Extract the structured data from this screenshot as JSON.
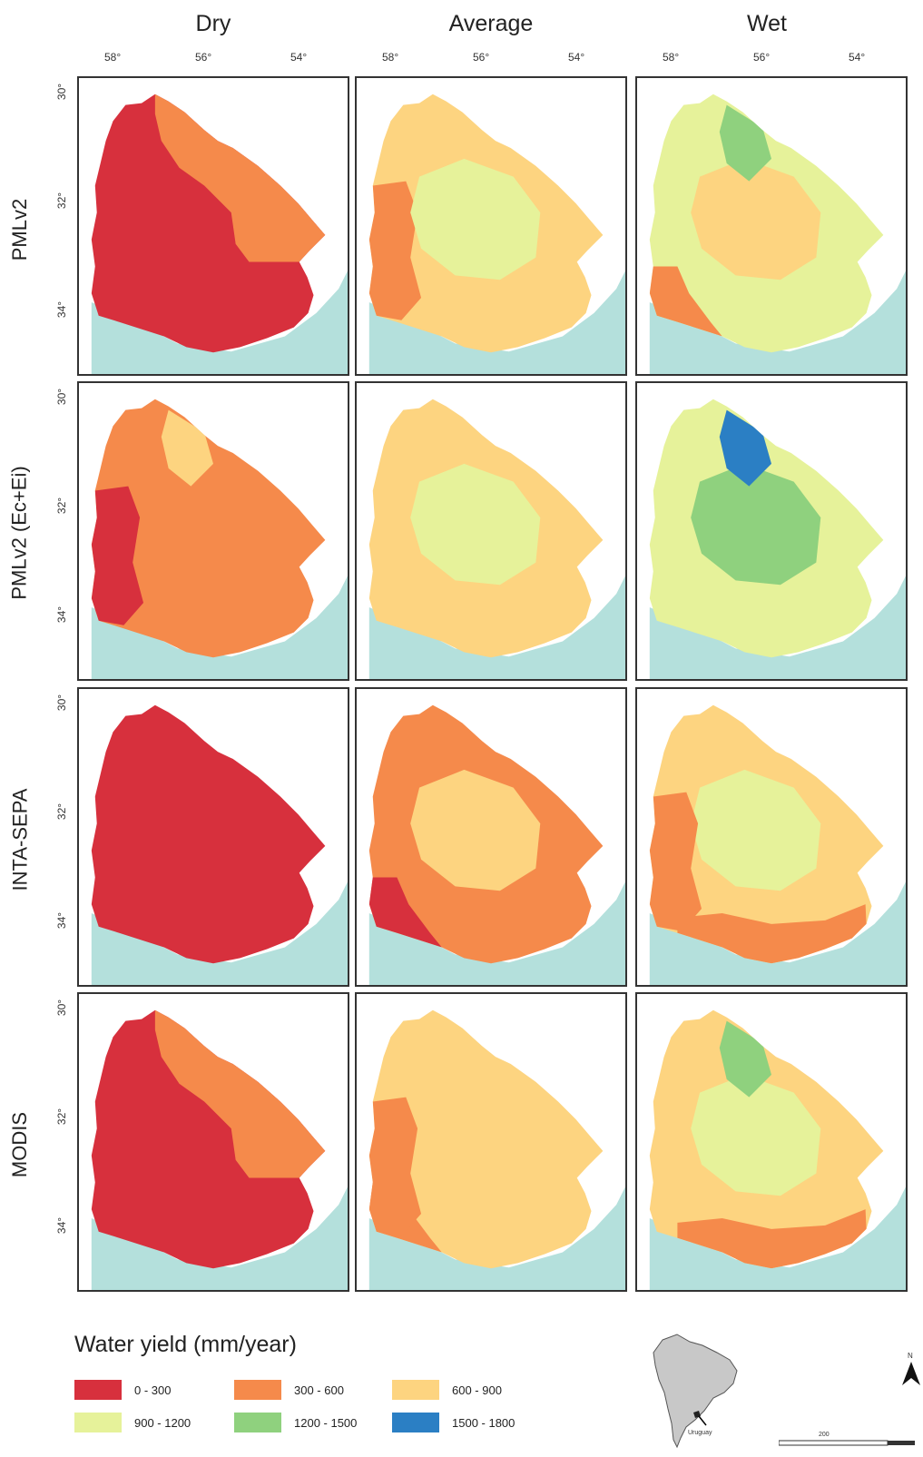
{
  "columns": [
    "Dry",
    "Average",
    "Wet"
  ],
  "rows": [
    "PMLv2",
    "PMLv2 (Ec+Ei)",
    "INTA-SEPA",
    "MODIS"
  ],
  "x_ticks": [
    "58°",
    "56°",
    "54°"
  ],
  "y_ticks": [
    "30°",
    "32°",
    "34°"
  ],
  "legend": {
    "title": "Water yield (mm/year)",
    "classes": [
      {
        "label": "0 - 300",
        "color": "#d7303d"
      },
      {
        "label": "300 - 600",
        "color": "#f58a4b"
      },
      {
        "label": "600 - 900",
        "color": "#fdd480"
      },
      {
        "label": "900 - 1200",
        "color": "#e6f29a"
      },
      {
        "label": "1200 - 1500",
        "color": "#8fd17e"
      },
      {
        "label": "1500 - 1800",
        "color": "#2b7fc4"
      }
    ]
  },
  "water_color": "#b4e0dc",
  "maps": [
    {
      "row": "PMLv2",
      "col": "Dry",
      "base": 0,
      "zones": [
        {
          "cls": 1,
          "shape": "northeast"
        }
      ]
    },
    {
      "row": "PMLv2",
      "col": "Average",
      "base": 2,
      "zones": [
        {
          "cls": 1,
          "shape": "west"
        },
        {
          "cls": 3,
          "shape": "center"
        }
      ]
    },
    {
      "row": "PMLv2",
      "col": "Wet",
      "base": 3,
      "zones": [
        {
          "cls": 2,
          "shape": "center"
        },
        {
          "cls": 4,
          "shape": "north"
        },
        {
          "cls": 1,
          "shape": "southwest"
        }
      ]
    },
    {
      "row": "PMLv2 (Ec+Ei)",
      "col": "Dry",
      "base": 1,
      "zones": [
        {
          "cls": 0,
          "shape": "west"
        },
        {
          "cls": 2,
          "shape": "north"
        }
      ]
    },
    {
      "row": "PMLv2 (Ec+Ei)",
      "col": "Average",
      "base": 2,
      "zones": [
        {
          "cls": 3,
          "shape": "center"
        }
      ]
    },
    {
      "row": "PMLv2 (Ec+Ei)",
      "col": "Wet",
      "base": 3,
      "zones": [
        {
          "cls": 4,
          "shape": "center"
        },
        {
          "cls": 5,
          "shape": "north"
        }
      ]
    },
    {
      "row": "INTA-SEPA",
      "col": "Dry",
      "base": 0,
      "zones": []
    },
    {
      "row": "INTA-SEPA",
      "col": "Average",
      "base": 1,
      "zones": [
        {
          "cls": 2,
          "shape": "center"
        },
        {
          "cls": 0,
          "shape": "southwest"
        }
      ]
    },
    {
      "row": "INTA-SEPA",
      "col": "Wet",
      "base": 2,
      "zones": [
        {
          "cls": 3,
          "shape": "center"
        },
        {
          "cls": 1,
          "shape": "south"
        },
        {
          "cls": 1,
          "shape": "west"
        }
      ]
    },
    {
      "row": "MODIS",
      "col": "Dry",
      "base": 0,
      "zones": [
        {
          "cls": 1,
          "shape": "northeast"
        }
      ]
    },
    {
      "row": "MODIS",
      "col": "Average",
      "base": 2,
      "zones": [
        {
          "cls": 1,
          "shape": "southwest"
        },
        {
          "cls": 1,
          "shape": "west"
        }
      ]
    },
    {
      "row": "MODIS",
      "col": "Wet",
      "base": 2,
      "zones": [
        {
          "cls": 3,
          "shape": "center"
        },
        {
          "cls": 1,
          "shape": "south"
        },
        {
          "cls": 4,
          "shape": "north"
        }
      ]
    }
  ],
  "inset_label": "Uruguay",
  "north_label": "N",
  "scale_label": "200"
}
